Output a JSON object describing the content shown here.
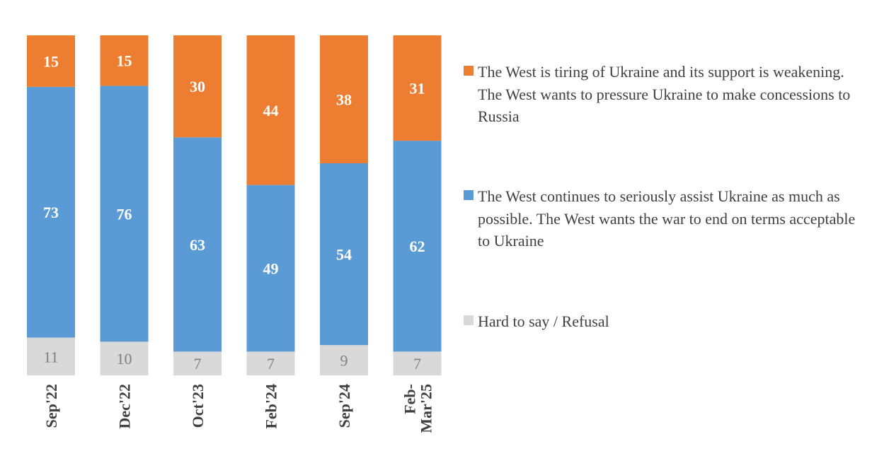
{
  "chart_data": {
    "type": "bar",
    "stacked": true,
    "categories": [
      "Sep'22",
      "Dec'22",
      "Oct'23",
      "Feb'24",
      "Sep'24",
      "Feb-Mar'25"
    ],
    "series": [
      {
        "name": "Hard to say / Refusal",
        "values": [
          11,
          10,
          7,
          7,
          9,
          7
        ],
        "color": "#D9D9D9",
        "label_color": "#7F7F7F"
      },
      {
        "name": "The West continues to seriously assist Ukraine as much as possible. The West wants the war to end on terms acceptable to Ukraine",
        "values": [
          73,
          76,
          63,
          49,
          54,
          62
        ],
        "color": "#5B9BD5",
        "label_color": "#FFFFFF"
      },
      {
        "name": "The West is tiring of Ukraine and its support is weakening. The West wants to pressure Ukraine to make concessions to Russia",
        "values": [
          15,
          15,
          30,
          44,
          38,
          31
        ],
        "color": "#ED7D31",
        "label_color": "#FFFFFF"
      }
    ],
    "title": "",
    "xlabel": "",
    "ylabel": "",
    "grid": false,
    "legend_position": "right"
  }
}
